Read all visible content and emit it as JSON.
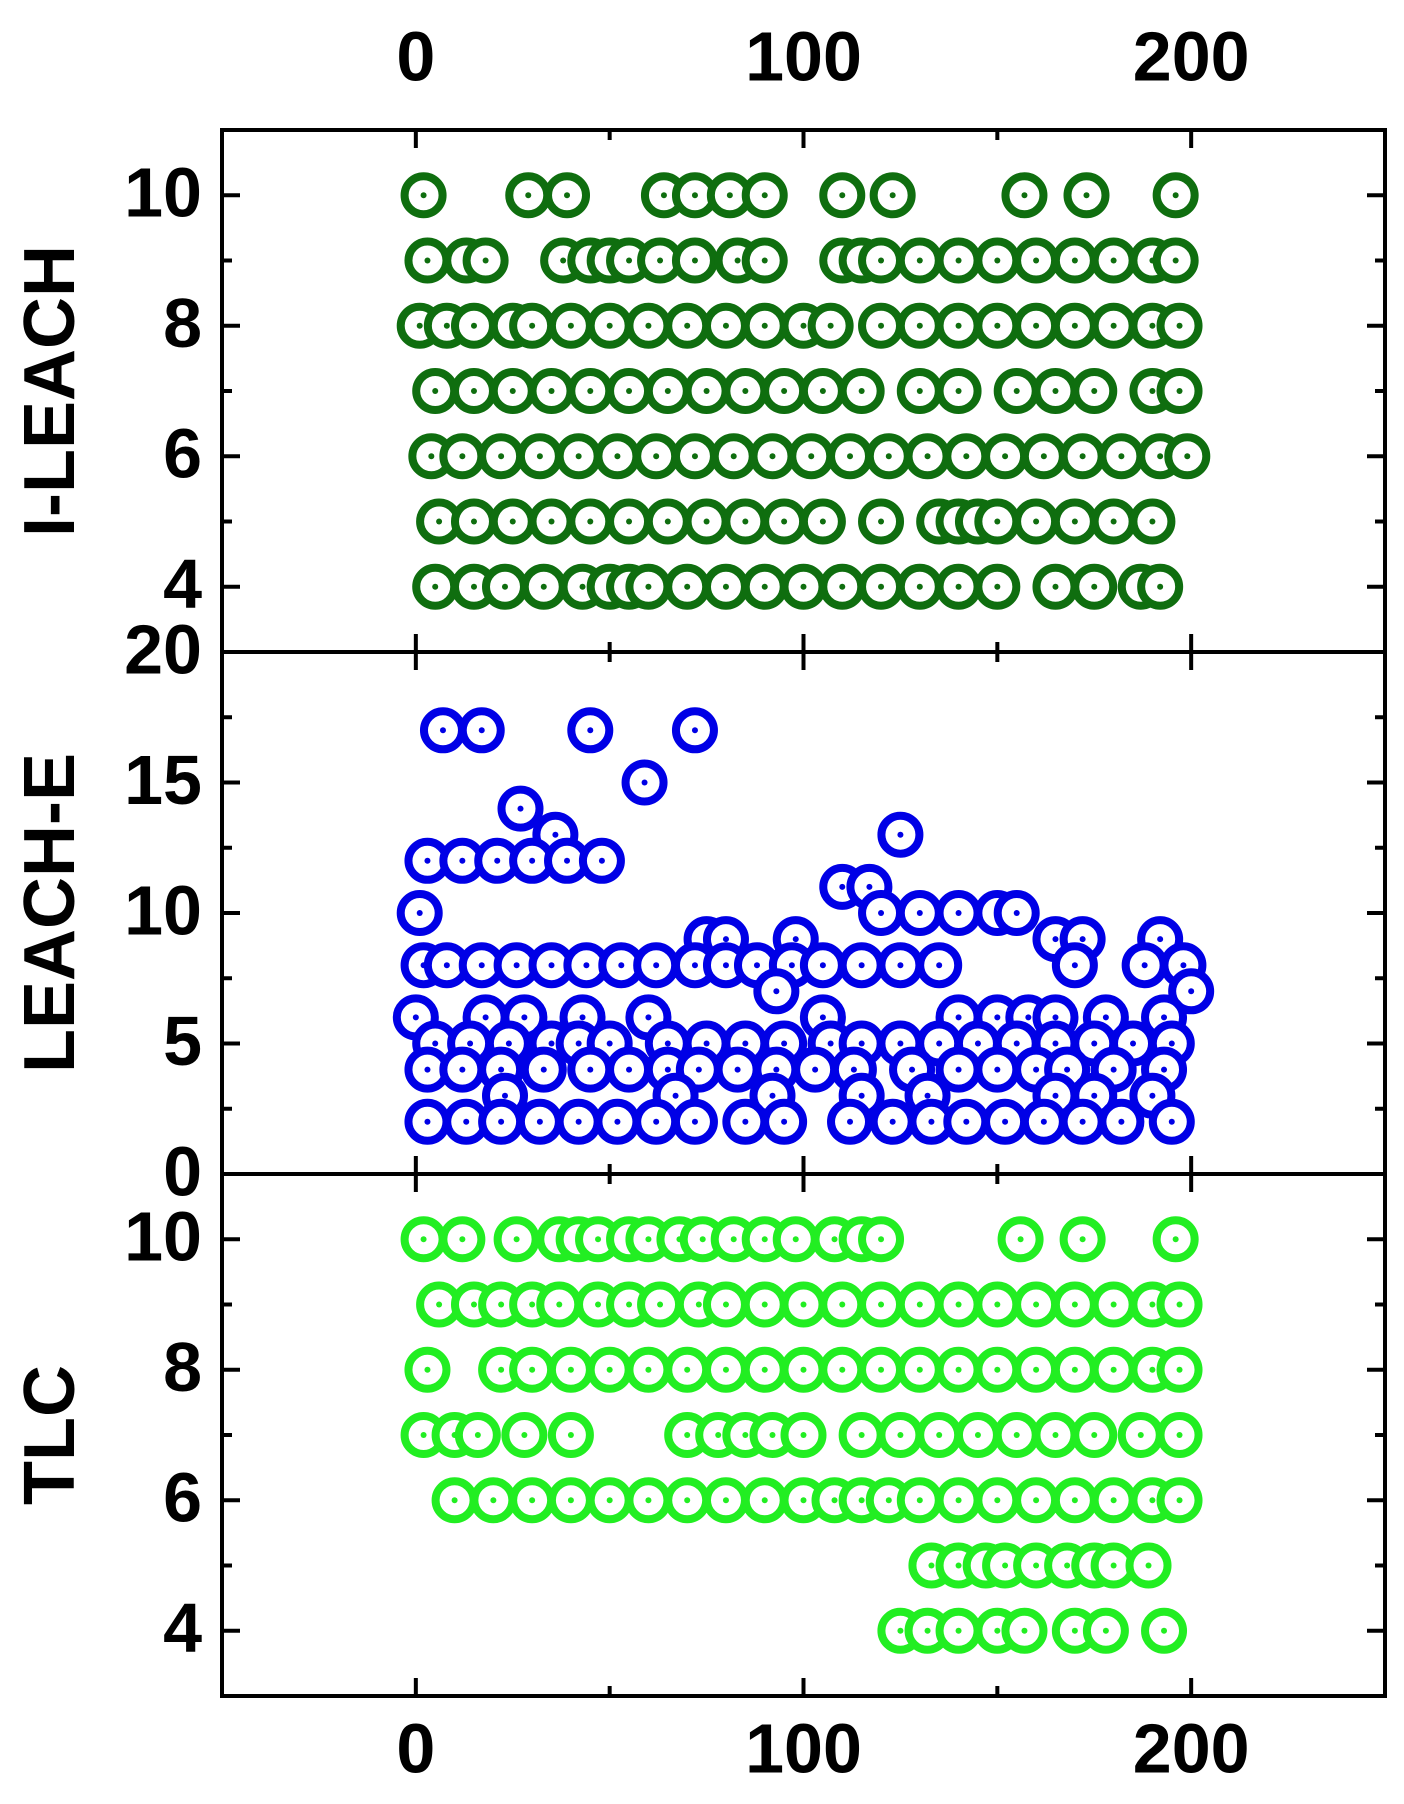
{
  "chart_data": [
    {
      "type": "scatter",
      "ylabel": "I-LEACH",
      "color": "#0f6e0f",
      "xtick_label_side": "top",
      "xlim": [
        -50,
        250
      ],
      "xticks": [
        0,
        100,
        200
      ],
      "xminor": [
        50,
        150
      ],
      "ylim": [
        3,
        11
      ],
      "yticks": [
        4,
        6,
        8,
        10
      ],
      "yminor": [
        5,
        7,
        9
      ],
      "x": [
        2,
        29,
        39,
        64,
        72,
        81,
        90,
        110,
        123,
        157,
        173,
        196,
        3,
        13,
        18,
        38,
        45,
        50,
        55,
        63,
        72,
        83,
        90,
        110,
        115,
        120,
        130,
        140,
        150,
        160,
        170,
        180,
        190,
        196,
        1,
        8,
        15,
        25,
        30,
        40,
        50,
        60,
        70,
        80,
        90,
        100,
        107,
        120,
        130,
        140,
        150,
        160,
        170,
        180,
        190,
        197,
        5,
        15,
        25,
        35,
        45,
        55,
        65,
        75,
        85,
        95,
        105,
        115,
        130,
        140,
        155,
        165,
        175,
        190,
        197,
        4,
        12,
        22,
        32,
        42,
        52,
        62,
        72,
        82,
        92,
        102,
        112,
        122,
        132,
        142,
        152,
        162,
        172,
        182,
        192,
        199,
        6,
        15,
        25,
        35,
        45,
        55,
        65,
        75,
        85,
        95,
        105,
        120,
        135,
        140,
        145,
        150,
        160,
        170,
        180,
        190,
        5,
        15,
        23,
        33,
        43,
        50,
        55,
        60,
        70,
        80,
        90,
        100,
        110,
        120,
        130,
        140,
        150,
        165,
        175,
        187,
        192
      ],
      "y": [
        10,
        10,
        10,
        10,
        10,
        10,
        10,
        10,
        10,
        10,
        10,
        10,
        9,
        9,
        9,
        9,
        9,
        9,
        9,
        9,
        9,
        9,
        9,
        9,
        9,
        9,
        9,
        9,
        9,
        9,
        9,
        9,
        9,
        9,
        8,
        8,
        8,
        8,
        8,
        8,
        8,
        8,
        8,
        8,
        8,
        8,
        8,
        8,
        8,
        8,
        8,
        8,
        8,
        8,
        8,
        8,
        7,
        7,
        7,
        7,
        7,
        7,
        7,
        7,
        7,
        7,
        7,
        7,
        7,
        7,
        7,
        7,
        7,
        7,
        7,
        6,
        6,
        6,
        6,
        6,
        6,
        6,
        6,
        6,
        6,
        6,
        6,
        6,
        6,
        6,
        6,
        6,
        6,
        6,
        6,
        6,
        5,
        5,
        5,
        5,
        5,
        5,
        5,
        5,
        5,
        5,
        5,
        5,
        5,
        5,
        5,
        5,
        5,
        5,
        5,
        5,
        4,
        4,
        4,
        4,
        4,
        4,
        4,
        4,
        4,
        4,
        4,
        4,
        4,
        4,
        4,
        4,
        4,
        4,
        4,
        4,
        4
      ]
    },
    {
      "type": "scatter",
      "ylabel": "LEACH-E",
      "color": "#0000e6",
      "xlim": [
        -50,
        250
      ],
      "xticks": [
        0,
        100,
        200
      ],
      "xminor": [
        50,
        150
      ],
      "ylim": [
        0,
        20
      ],
      "yticks": [
        0,
        5,
        10,
        15,
        20
      ],
      "yminor": [
        2.5,
        7.5,
        12.5,
        17.5
      ],
      "x": [
        7,
        17,
        45,
        72,
        59,
        27,
        36,
        125,
        3,
        12,
        21,
        30,
        39,
        48,
        110,
        117,
        1,
        120,
        130,
        140,
        150,
        155,
        75,
        80,
        98,
        165,
        172,
        192,
        2,
        8,
        17,
        26,
        35,
        44,
        53,
        62,
        72,
        80,
        88,
        97,
        105,
        115,
        125,
        135,
        170,
        188,
        198,
        93,
        200,
        0,
        18,
        28,
        43,
        60,
        105,
        140,
        150,
        158,
        165,
        178,
        193,
        5,
        14,
        24,
        35,
        42,
        50,
        65,
        75,
        85,
        95,
        107,
        115,
        125,
        135,
        145,
        155,
        165,
        175,
        185,
        195,
        3,
        12,
        22,
        33,
        45,
        55,
        65,
        73,
        83,
        93,
        103,
        113,
        128,
        140,
        150,
        160,
        168,
        180,
        193,
        23,
        67,
        92,
        115,
        132,
        165,
        175,
        190,
        3,
        13,
        22,
        32,
        42,
        52,
        62,
        72,
        85,
        95,
        112,
        123,
        133,
        142,
        152,
        162,
        172,
        182,
        195
      ],
      "y": [
        17,
        17,
        17,
        17,
        15,
        14,
        13,
        13,
        12,
        12,
        12,
        12,
        12,
        12,
        11,
        11,
        10,
        10,
        10,
        10,
        10,
        10,
        9,
        9,
        9,
        9,
        9,
        9,
        8,
        8,
        8,
        8,
        8,
        8,
        8,
        8,
        8,
        8,
        8,
        8,
        8,
        8,
        8,
        8,
        8,
        8,
        8,
        7,
        7,
        6,
        6,
        6,
        6,
        6,
        6,
        6,
        6,
        6,
        6,
        6,
        6,
        5,
        5,
        5,
        5,
        5,
        5,
        5,
        5,
        5,
        5,
        5,
        5,
        5,
        5,
        5,
        5,
        5,
        5,
        5,
        5,
        4,
        4,
        4,
        4,
        4,
        4,
        4,
        4,
        4,
        4,
        4,
        4,
        4,
        4,
        4,
        4,
        4,
        4,
        4,
        3,
        3,
        3,
        3,
        3,
        3,
        3,
        3,
        2,
        2,
        2,
        2,
        2,
        2,
        2,
        2,
        2,
        2,
        2,
        2,
        2,
        2,
        2,
        2,
        2,
        2,
        2
      ]
    },
    {
      "type": "scatter",
      "ylabel": "TLC",
      "color": "#22ee22",
      "xtick_label_side": "bottom",
      "xlim": [
        -50,
        250
      ],
      "xticks": [
        0,
        100,
        200
      ],
      "xminor": [
        50,
        150
      ],
      "ylim": [
        3,
        11
      ],
      "yticks": [
        4,
        6,
        8,
        10
      ],
      "yminor": [
        5,
        7,
        9
      ],
      "x": [
        2,
        12,
        26,
        37,
        42,
        47,
        55,
        60,
        68,
        74,
        82,
        90,
        98,
        108,
        115,
        120,
        156,
        172,
        196,
        6,
        15,
        22,
        30,
        37,
        47,
        55,
        63,
        73,
        80,
        90,
        100,
        110,
        120,
        130,
        140,
        150,
        160,
        170,
        180,
        190,
        197,
        3,
        22,
        30,
        40,
        50,
        60,
        70,
        80,
        90,
        100,
        110,
        120,
        130,
        140,
        150,
        160,
        170,
        180,
        190,
        197,
        2,
        10,
        16,
        28,
        40,
        70,
        78,
        85,
        92,
        100,
        115,
        125,
        135,
        145,
        155,
        165,
        175,
        187,
        197,
        10,
        20,
        30,
        40,
        50,
        60,
        70,
        80,
        90,
        100,
        108,
        115,
        122,
        130,
        140,
        150,
        160,
        170,
        180,
        190,
        197,
        133,
        140,
        147,
        152,
        160,
        168,
        175,
        180,
        189,
        125,
        132,
        140,
        150,
        157,
        170,
        178,
        193
      ],
      "y": [
        10,
        10,
        10,
        10,
        10,
        10,
        10,
        10,
        10,
        10,
        10,
        10,
        10,
        10,
        10,
        10,
        10,
        10,
        10,
        9,
        9,
        9,
        9,
        9,
        9,
        9,
        9,
        9,
        9,
        9,
        9,
        9,
        9,
        9,
        9,
        9,
        9,
        9,
        9,
        9,
        9,
        8,
        8,
        8,
        8,
        8,
        8,
        8,
        8,
        8,
        8,
        8,
        8,
        8,
        8,
        8,
        8,
        8,
        8,
        8,
        8,
        7,
        7,
        7,
        7,
        7,
        7,
        7,
        7,
        7,
        7,
        7,
        7,
        7,
        7,
        7,
        7,
        7,
        7,
        7,
        6,
        6,
        6,
        6,
        6,
        6,
        6,
        6,
        6,
        6,
        6,
        6,
        6,
        6,
        6,
        6,
        6,
        6,
        6,
        6,
        6,
        5,
        5,
        5,
        5,
        5,
        5,
        5,
        5,
        5,
        4,
        4,
        4,
        4,
        4,
        4,
        4,
        4
      ]
    }
  ]
}
